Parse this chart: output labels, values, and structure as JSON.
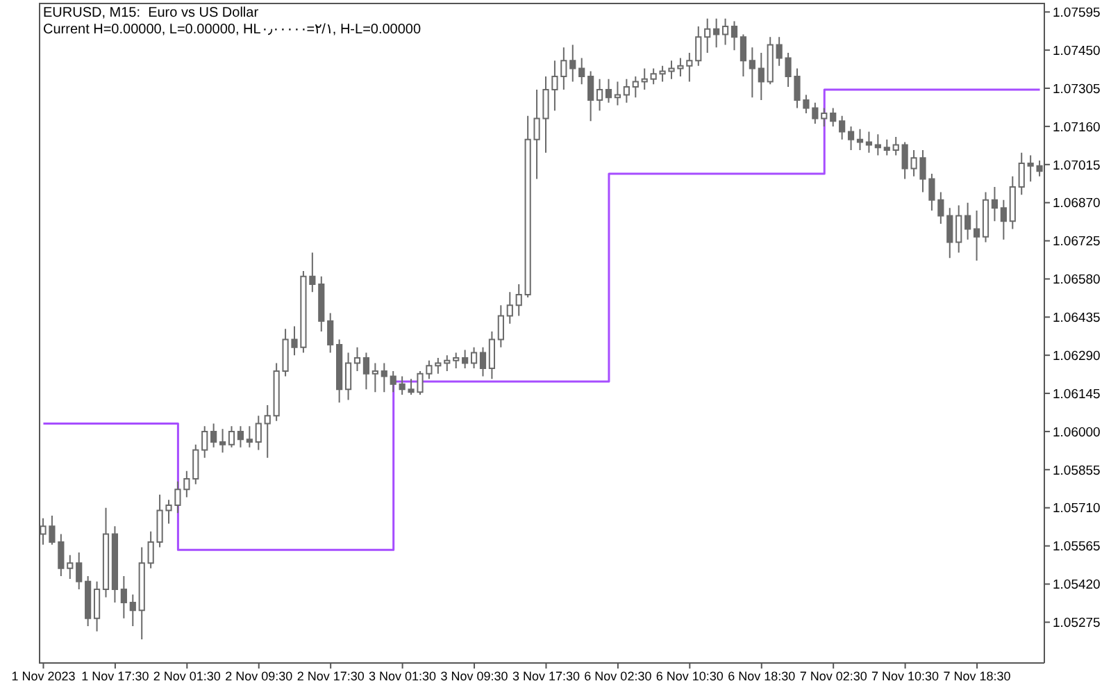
{
  "chart_data": {
    "type": "candlestick",
    "title": "EURUSD, M15:  Euro vs US Dollar",
    "subtitle": "Current H=0.00000, L=0.00000, HL۰٫۰۰۰۰۰=۲/۱, H-L=0.00000",
    "color": "#6a6a6a",
    "categories": [
      "1 Nov 2023",
      null,
      null,
      null,
      null,
      null,
      null,
      null,
      "1 Nov 17:30",
      null,
      null,
      null,
      null,
      null,
      null,
      null,
      "2 Nov 01:30",
      null,
      null,
      null,
      null,
      null,
      null,
      null,
      "2 Nov 09:30",
      null,
      null,
      null,
      null,
      null,
      null,
      null,
      "2 Nov 17:30",
      null,
      null,
      null,
      null,
      null,
      null,
      null,
      "3 Nov 01:30",
      null,
      null,
      null,
      null,
      null,
      null,
      null,
      "3 Nov 09:30",
      null,
      null,
      null,
      null,
      null,
      null,
      null,
      "3 Nov 17:30",
      null,
      null,
      null,
      null,
      null,
      null,
      null,
      "6 Nov 02:30",
      null,
      null,
      null,
      null,
      null,
      null,
      null,
      "6 Nov 10:30",
      null,
      null,
      null,
      null,
      null,
      null,
      null,
      "6 Nov 18:30",
      null,
      null,
      null,
      null,
      null,
      null,
      null,
      "7 Nov 02:30",
      null,
      null,
      null,
      null,
      null,
      null,
      null,
      "7 Nov 10:30",
      null,
      null,
      null,
      null,
      null,
      null,
      null,
      "7 Nov 18:30",
      null,
      null,
      null,
      null,
      null,
      null,
      null
    ],
    "ohlc": [
      [
        1.0561,
        1.0567,
        1.0557,
        1.0564
      ],
      [
        1.0564,
        1.0568,
        1.0557,
        1.0558
      ],
      [
        1.0558,
        1.0561,
        1.0545,
        1.0548
      ],
      [
        1.0548,
        1.0553,
        1.0544,
        1.055
      ],
      [
        1.055,
        1.0554,
        1.054,
        1.0543
      ],
      [
        1.0543,
        1.0545,
        1.0526,
        1.0529
      ],
      [
        1.0529,
        1.0543,
        1.0524,
        1.054
      ],
      [
        1.054,
        1.0571,
        1.0537,
        1.0561
      ],
      [
        1.0561,
        1.0564,
        1.0535,
        1.054
      ],
      [
        1.054,
        1.0545,
        1.0529,
        1.0535
      ],
      [
        1.0535,
        1.0538,
        1.0526,
        1.0532
      ],
      [
        1.0532,
        1.0556,
        1.0521,
        1.055
      ],
      [
        1.055,
        1.0562,
        1.0548,
        1.0558
      ],
      [
        1.0558,
        1.0576,
        1.0556,
        1.057
      ],
      [
        1.057,
        1.0574,
        1.0565,
        1.0572
      ],
      [
        1.0572,
        1.0581,
        1.0569,
        1.0578
      ],
      [
        1.0578,
        1.0585,
        1.0575,
        1.0582
      ],
      [
        1.0582,
        1.0595,
        1.058,
        1.0593
      ],
      [
        1.0593,
        1.0602,
        1.059,
        1.06
      ],
      [
        1.06,
        1.0603,
        1.0594,
        1.0596
      ],
      [
        1.0596,
        1.0601,
        1.0592,
        1.0595
      ],
      [
        1.0595,
        1.0602,
        1.0594,
        1.06
      ],
      [
        1.06,
        1.0602,
        1.0594,
        1.0597
      ],
      [
        1.0597,
        1.0602,
        1.0594,
        1.0596
      ],
      [
        1.0596,
        1.0606,
        1.0593,
        1.0603
      ],
      [
        1.0603,
        1.061,
        1.059,
        1.0606
      ],
      [
        1.0606,
        1.0626,
        1.0604,
        1.0623
      ],
      [
        1.0623,
        1.0639,
        1.0621,
        1.0635
      ],
      [
        1.0635,
        1.064,
        1.0629,
        1.0632
      ],
      [
        1.0632,
        1.0661,
        1.063,
        1.0659
      ],
      [
        1.0659,
        1.0668,
        1.0653,
        1.0656
      ],
      [
        1.0656,
        1.0659,
        1.0638,
        1.0642
      ],
      [
        1.0642,
        1.0645,
        1.063,
        1.0633
      ],
      [
        1.0633,
        1.0635,
        1.0611,
        1.0616
      ],
      [
        1.0616,
        1.063,
        1.0612,
        1.0626
      ],
      [
        1.0626,
        1.0632,
        1.0623,
        1.0628
      ],
      [
        1.0628,
        1.063,
        1.0616,
        1.0622
      ],
      [
        1.0622,
        1.0626,
        1.0615,
        1.0623
      ],
      [
        1.0623,
        1.0626,
        1.0615,
        1.0621
      ],
      [
        1.0621,
        1.0623,
        1.0615,
        1.0618
      ],
      [
        1.0618,
        1.0621,
        1.0614,
        1.0616
      ],
      [
        1.0616,
        1.062,
        1.0614,
        1.0615
      ],
      [
        1.0615,
        1.0623,
        1.0614,
        1.0622
      ],
      [
        1.0622,
        1.0627,
        1.062,
        1.0625
      ],
      [
        1.0625,
        1.0628,
        1.0622,
        1.0626
      ],
      [
        1.0626,
        1.0629,
        1.0623,
        1.0627
      ],
      [
        1.0627,
        1.063,
        1.0624,
        1.0628
      ],
      [
        1.0628,
        1.0631,
        1.0624,
        1.0626
      ],
      [
        1.0626,
        1.0632,
        1.0624,
        1.063
      ],
      [
        1.063,
        1.0632,
        1.0621,
        1.0624
      ],
      [
        1.0624,
        1.0638,
        1.062,
        1.0635
      ],
      [
        1.0635,
        1.0648,
        1.0632,
        1.0644
      ],
      [
        1.0644,
        1.0653,
        1.0641,
        1.0648
      ],
      [
        1.0648,
        1.0656,
        1.0644,
        1.0652
      ],
      [
        1.0652,
        1.072,
        1.0651,
        1.0711
      ],
      [
        1.0711,
        1.073,
        1.0696,
        1.0719
      ],
      [
        1.0719,
        1.0735,
        1.0706,
        1.073
      ],
      [
        1.073,
        1.0741,
        1.0722,
        1.0735
      ],
      [
        1.0735,
        1.0746,
        1.073,
        1.0741
      ],
      [
        1.0741,
        1.0747,
        1.0733,
        1.0738
      ],
      [
        1.0738,
        1.0742,
        1.0732,
        1.0735
      ],
      [
        1.0735,
        1.0737,
        1.0718,
        1.0726
      ],
      [
        1.0726,
        1.0734,
        1.0722,
        1.073
      ],
      [
        1.073,
        1.0734,
        1.0725,
        1.0727
      ],
      [
        1.0727,
        1.0733,
        1.0724,
        1.0728
      ],
      [
        1.0728,
        1.0734,
        1.0725,
        1.0731
      ],
      [
        1.0731,
        1.0735,
        1.0727,
        1.0733
      ],
      [
        1.0733,
        1.0738,
        1.073,
        1.0734
      ],
      [
        1.0734,
        1.0738,
        1.0732,
        1.0736
      ],
      [
        1.0736,
        1.0739,
        1.0733,
        1.0737
      ],
      [
        1.0737,
        1.0741,
        1.0734,
        1.0738
      ],
      [
        1.0738,
        1.0742,
        1.0735,
        1.0739
      ],
      [
        1.0739,
        1.0744,
        1.0733,
        1.0741
      ],
      [
        1.0741,
        1.0754,
        1.0739,
        1.075
      ],
      [
        1.075,
        1.0757,
        1.0744,
        1.0753
      ],
      [
        1.0753,
        1.0757,
        1.0746,
        1.0751
      ],
      [
        1.0751,
        1.0757,
        1.0747,
        1.0754
      ],
      [
        1.0754,
        1.0756,
        1.0745,
        1.075
      ],
      [
        1.075,
        1.0751,
        1.0735,
        1.0741
      ],
      [
        1.0741,
        1.0746,
        1.0727,
        1.0738
      ],
      [
        1.0738,
        1.0744,
        1.0726,
        1.0733
      ],
      [
        1.0733,
        1.075,
        1.0732,
        1.0747
      ],
      [
        1.0747,
        1.075,
        1.0739,
        1.0742
      ],
      [
        1.0742,
        1.0744,
        1.0731,
        1.0735
      ],
      [
        1.0735,
        1.0738,
        1.0723,
        1.0726
      ],
      [
        1.0726,
        1.0728,
        1.0721,
        1.0723
      ],
      [
        1.0723,
        1.0725,
        1.0717,
        1.0719
      ],
      [
        1.0719,
        1.0723,
        1.0716,
        1.0721
      ],
      [
        1.0721,
        1.0723,
        1.0716,
        1.0718
      ],
      [
        1.0718,
        1.072,
        1.0711,
        1.0714
      ],
      [
        1.0714,
        1.0716,
        1.0707,
        1.0711
      ],
      [
        1.0711,
        1.0715,
        1.0707,
        1.071
      ],
      [
        1.071,
        1.0714,
        1.0706,
        1.0709
      ],
      [
        1.0709,
        1.0713,
        1.0705,
        1.0708
      ],
      [
        1.0708,
        1.0711,
        1.0705,
        1.0707
      ],
      [
        1.0707,
        1.0712,
        1.0705,
        1.0709
      ],
      [
        1.0709,
        1.071,
        1.0696,
        1.07
      ],
      [
        1.07,
        1.0707,
        1.0697,
        1.0704
      ],
      [
        1.0704,
        1.0707,
        1.0691,
        1.0696
      ],
      [
        1.0696,
        1.0698,
        1.0684,
        1.0688
      ],
      [
        1.0688,
        1.0691,
        1.0679,
        1.0682
      ],
      [
        1.0682,
        1.0685,
        1.0666,
        1.0672
      ],
      [
        1.0672,
        1.0686,
        1.0668,
        1.0682
      ],
      [
        1.0682,
        1.0687,
        1.0673,
        1.0677
      ],
      [
        1.0677,
        1.0684,
        1.0665,
        1.0674
      ],
      [
        1.0674,
        1.0691,
        1.0672,
        1.0688
      ],
      [
        1.0688,
        1.0693,
        1.068,
        1.0685
      ],
      [
        1.0685,
        1.0688,
        1.0673,
        1.068
      ],
      [
        1.068,
        1.0697,
        1.0677,
        1.0693
      ],
      [
        1.0693,
        1.0706,
        1.069,
        1.0702
      ],
      [
        1.0702,
        1.0705,
        1.0695,
        1.0701
      ],
      [
        1.0701,
        1.0703,
        1.0697,
        1.0699
      ]
    ],
    "series": [
      {
        "type": "step",
        "color": "#a64dff",
        "values": [
          1.0603,
          1.0603,
          1.0603,
          1.0603,
          1.0603,
          1.0603,
          1.0603,
          1.0603,
          1.0603,
          1.0603,
          1.0603,
          1.0603,
          1.0603,
          1.0603,
          1.0603,
          1.0555,
          1.0555,
          1.0555,
          1.0555,
          1.0555,
          1.0555,
          1.0555,
          1.0555,
          1.0555,
          1.0555,
          1.0555,
          1.0555,
          1.0555,
          1.0555,
          1.0555,
          1.0555,
          1.0555,
          1.0555,
          1.0555,
          1.0555,
          1.0555,
          1.0555,
          1.0555,
          1.0555,
          1.0619,
          1.0619,
          1.0619,
          1.0619,
          1.0619,
          1.0619,
          1.0619,
          1.0619,
          1.0619,
          1.0619,
          1.0619,
          1.0619,
          1.0619,
          1.0619,
          1.0619,
          1.0619,
          1.0619,
          1.0619,
          1.0619,
          1.0619,
          1.0619,
          1.0619,
          1.0619,
          1.0619,
          1.0698,
          1.0698,
          1.0698,
          1.0698,
          1.0698,
          1.0698,
          1.0698,
          1.0698,
          1.0698,
          1.0698,
          1.0698,
          1.0698,
          1.0698,
          1.0698,
          1.0698,
          1.0698,
          1.0698,
          1.0698,
          1.0698,
          1.0698,
          1.0698,
          1.0698,
          1.0698,
          1.0698,
          1.073,
          1.073,
          1.073,
          1.073,
          1.073,
          1.073,
          1.073,
          1.073,
          1.073,
          1.073,
          1.073,
          1.073,
          1.073,
          1.073,
          1.073,
          1.073,
          1.073,
          1.073,
          1.073,
          1.073,
          1.073,
          1.073,
          1.073,
          1.073,
          1.073
        ]
      }
    ],
    "ylim": [
      1.0512,
      1.0763
    ],
    "yticks": [
      1.07595,
      {
        "value": 1.0745,
        "label": "1.07450"
      },
      1.07305,
      {
        "value": 1.0716,
        "label": "1.07160"
      },
      1.07015,
      {
        "value": 1.0687,
        "label": "1.06870"
      },
      1.06725,
      {
        "value": 1.0658,
        "label": "1.06580"
      },
      1.06435,
      {
        "value": 1.0629,
        "label": "1.06290"
      },
      1.06145,
      {
        "value": 1.06,
        "label": "1.06000"
      },
      1.05855,
      {
        "value": 1.0571,
        "label": "1.05710"
      },
      1.05565,
      {
        "value": 1.0542,
        "label": "1.05420"
      },
      1.05275
    ]
  }
}
